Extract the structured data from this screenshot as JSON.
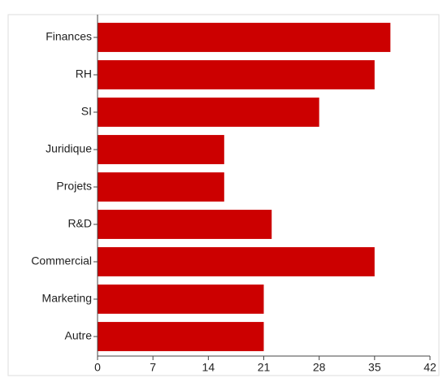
{
  "chart_data": {
    "type": "bar",
    "orientation": "horizontal",
    "categories": [
      "Finances",
      "RH",
      "SI",
      "Juridique",
      "Projets",
      "R&D",
      "Commercial",
      "Marketing",
      "Autre"
    ],
    "values": [
      37,
      35,
      28,
      16,
      16,
      22,
      35,
      21,
      21
    ],
    "color": "#cc0000",
    "xlim": [
      0,
      42
    ],
    "xticks": [
      0,
      7,
      14,
      21,
      28,
      35,
      42
    ],
    "grid": false
  }
}
